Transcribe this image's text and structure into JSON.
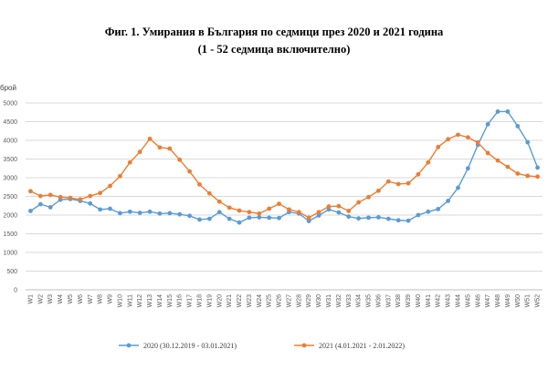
{
  "chart_data": {
    "type": "line",
    "title": "Фиг. 1. Умирания в България по седмици през 2020 и 2021 година",
    "subtitle": "(1 - 52 седмица включително)",
    "ylabel": "брой",
    "xlabel": "",
    "ylim": [
      0,
      5000
    ],
    "yticks": [
      "0",
      "500",
      "1000",
      "1500",
      "2000",
      "2500",
      "3000",
      "3500",
      "4000",
      "4500",
      "5000"
    ],
    "categories": [
      "W1",
      "W2",
      "W3",
      "W4",
      "W5",
      "W6",
      "W7",
      "W8",
      "W9",
      "W10",
      "W11",
      "W12",
      "W13",
      "W14",
      "W15",
      "W16",
      "W17",
      "W18",
      "W19",
      "W20",
      "W21",
      "W22",
      "W23",
      "W24",
      "W25",
      "W26",
      "W27",
      "W28",
      "W29",
      "W30",
      "W31",
      "W32",
      "W33",
      "W34",
      "W35",
      "W36",
      "W37",
      "W38",
      "W39",
      "W40",
      "W41",
      "W42",
      "W43",
      "W44",
      "W45",
      "W46",
      "W47",
      "W48",
      "W49",
      "W50",
      "W51",
      "W52"
    ],
    "series": [
      {
        "name": "2020 (30.12.2019 - 03.01.2021)",
        "color": "#5b9bd5",
        "values": [
          2110,
          2290,
          2210,
          2410,
          2430,
          2380,
          2310,
          2150,
          2170,
          2050,
          2090,
          2060,
          2090,
          2040,
          2050,
          2020,
          1980,
          1880,
          1900,
          2080,
          1900,
          1800,
          1930,
          1940,
          1930,
          1920,
          2080,
          2040,
          1840,
          1990,
          2150,
          2070,
          1960,
          1910,
          1930,
          1940,
          1900,
          1860,
          1850,
          2000,
          2090,
          2160,
          2380,
          2730,
          3250,
          3880,
          4430,
          4770,
          4770,
          4380,
          3950,
          3270
        ]
      },
      {
        "name": "2021 (4.01.2021 - 2.01.2022)",
        "color": "#ed7d31",
        "values": [
          2640,
          2510,
          2540,
          2480,
          2460,
          2420,
          2510,
          2590,
          2780,
          3040,
          3410,
          3690,
          4040,
          3810,
          3780,
          3480,
          3170,
          2820,
          2580,
          2360,
          2200,
          2120,
          2080,
          2040,
          2170,
          2300,
          2150,
          2080,
          1930,
          2080,
          2230,
          2240,
          2110,
          2340,
          2480,
          2650,
          2900,
          2830,
          2850,
          3090,
          3410,
          3820,
          4030,
          4150,
          4080,
          3940,
          3660,
          3460,
          3290,
          3110,
          3050,
          3030
        ]
      }
    ],
    "grid": true,
    "legend": "bottom"
  }
}
